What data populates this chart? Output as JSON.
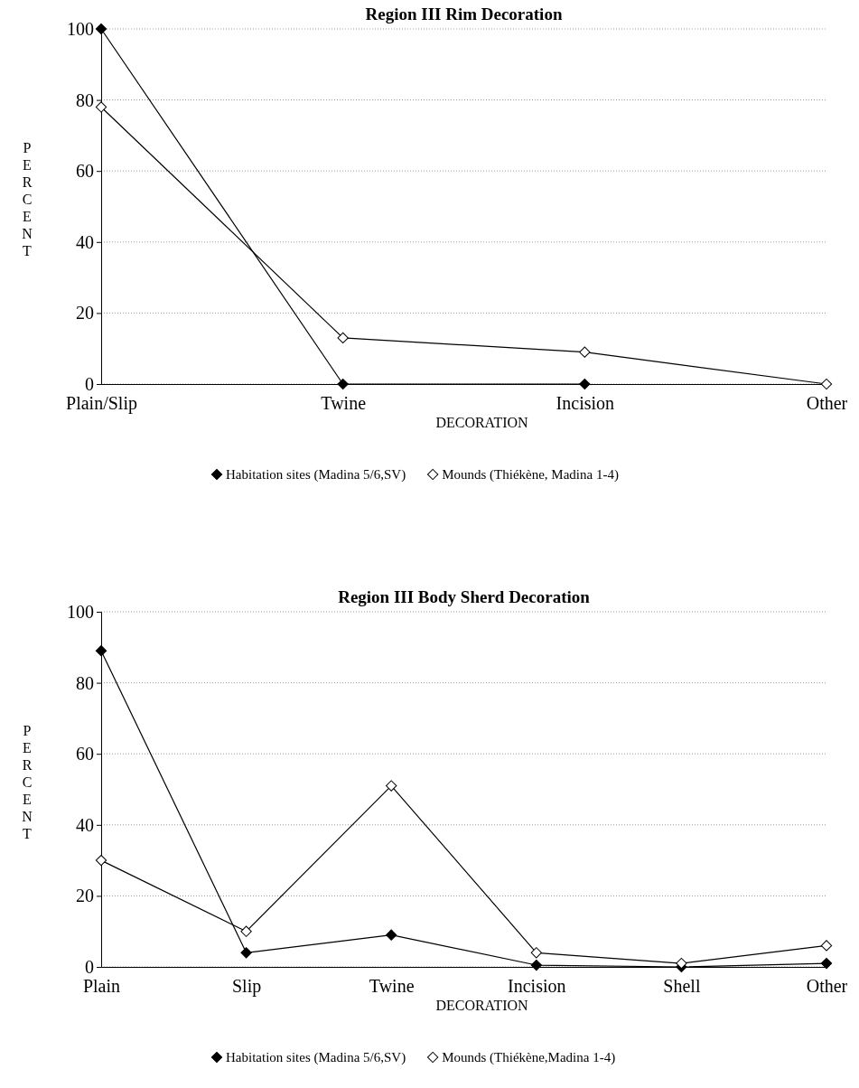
{
  "chart_data": [
    {
      "type": "line",
      "title": "Region III Rim Decoration",
      "xlabel": "DECORATION",
      "ylabel": "PERCENT",
      "categories": [
        "Plain/Slip",
        "Twine",
        "Incision",
        "Other"
      ],
      "ylim": [
        0,
        100
      ],
      "yticks": [
        0,
        20,
        40,
        60,
        80,
        100
      ],
      "grid": "y",
      "legend": "bottom",
      "marker": "diamond",
      "line_style": "solid",
      "series": [
        {
          "name": "Habitation sites (Madina 5/6,SV)",
          "color": "#000000",
          "values": [
            100,
            0,
            0,
            null
          ]
        },
        {
          "name": "Mounds (Thiékène, Madina 1-4)",
          "color": "#ffffff",
          "values": [
            78,
            13,
            9,
            0
          ]
        }
      ]
    },
    {
      "type": "line",
      "title": "Region III Body Sherd Decoration",
      "xlabel": "DECORATION",
      "ylabel": "PERCENT",
      "categories": [
        "Plain",
        "Slip",
        "Twine",
        "Incision",
        "Shell",
        "Other"
      ],
      "ylim": [
        0,
        100
      ],
      "yticks": [
        0,
        20,
        40,
        60,
        80,
        100
      ],
      "grid": "y",
      "legend": "bottom",
      "marker": "diamond",
      "line_style": "solid",
      "series": [
        {
          "name": "Habitation sites (Madina 5/6,SV)",
          "color": "#000000",
          "values": [
            89,
            4,
            9,
            0.5,
            0,
            1
          ]
        },
        {
          "name": "Mounds (Thiékène,Madina 1-4)",
          "color": "#ffffff",
          "values": [
            30,
            10,
            51,
            4,
            1,
            6
          ]
        }
      ]
    }
  ]
}
